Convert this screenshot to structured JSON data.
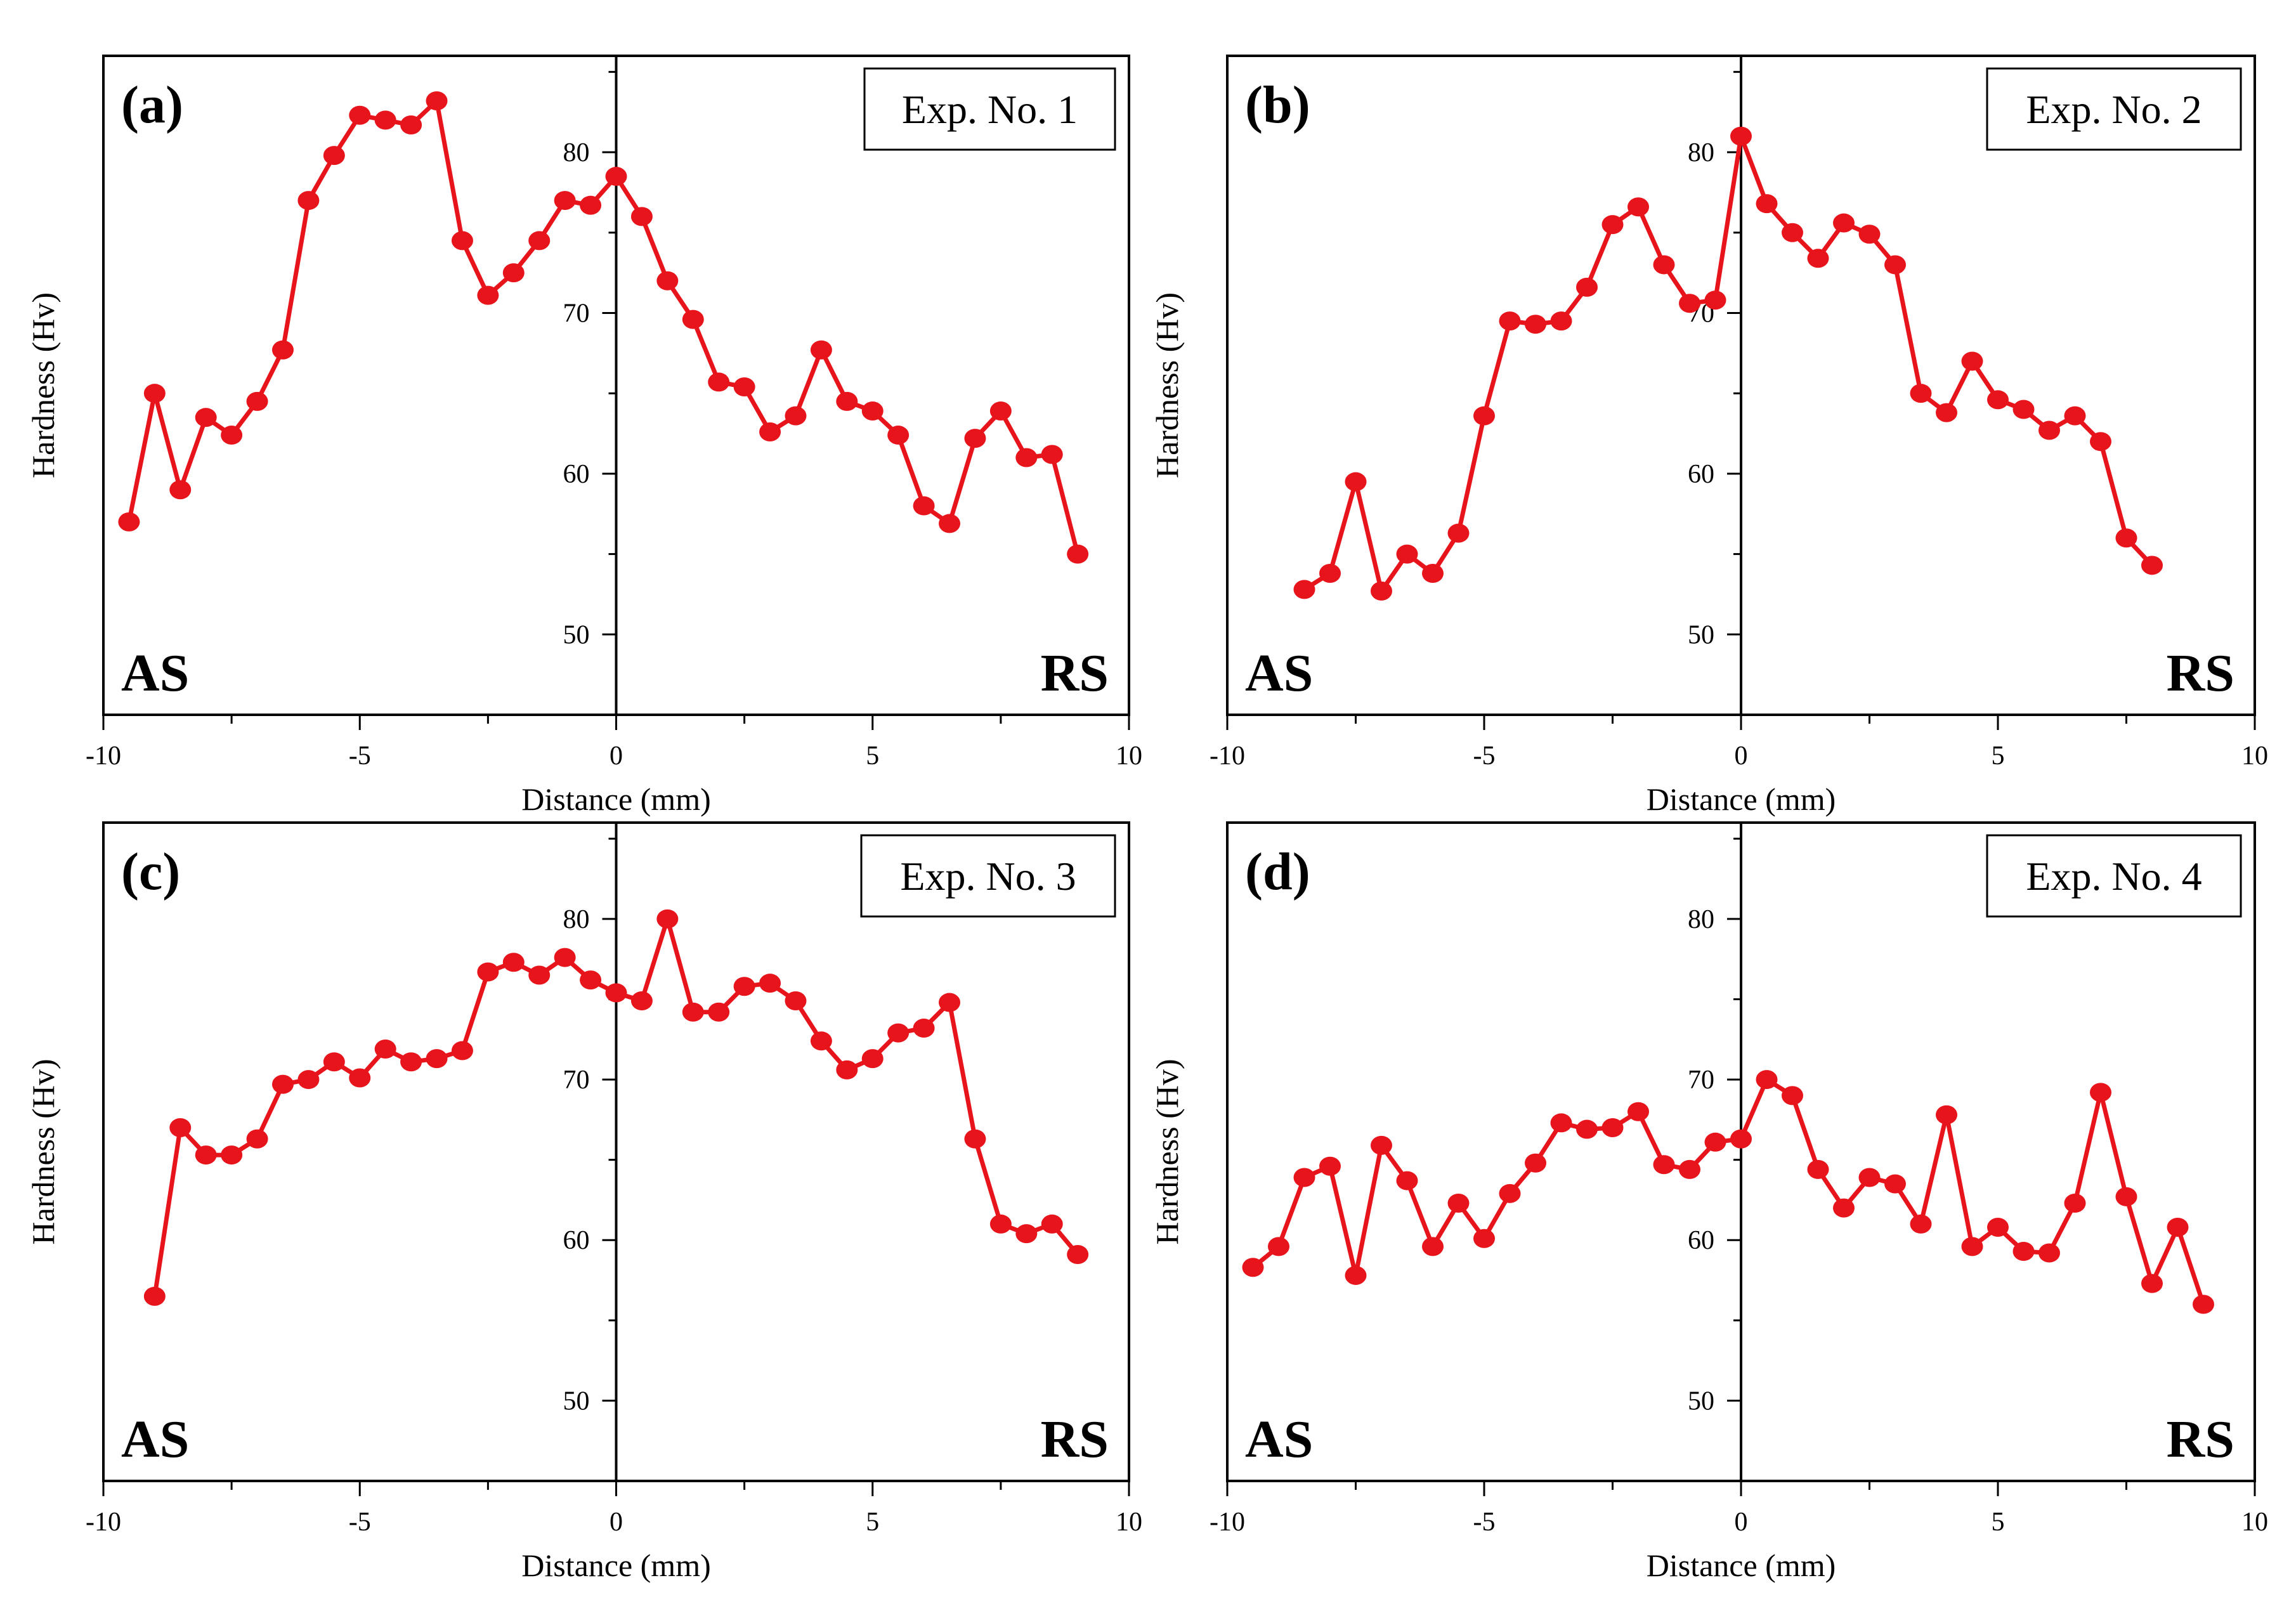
{
  "colors": {
    "series": "#e8141c",
    "axis": "#000000",
    "background": "#ffffff"
  },
  "chart_data": [
    {
      "type": "line",
      "panel_label": "(a)",
      "legend": "Exp. No. 1",
      "xlabel": "Distance (mm)",
      "ylabel": "Hardness (Hv)",
      "xlim": [
        -10,
        10
      ],
      "ylim": [
        45,
        86
      ],
      "xticks": [
        "-10",
        "-5",
        "0",
        "5",
        "10"
      ],
      "yticks": [
        "50",
        "60",
        "70",
        "80"
      ],
      "left_text": "AS",
      "right_text": "RS",
      "x": [
        -9.5,
        -9,
        -8.5,
        -8,
        -7.5,
        -7,
        -6.5,
        -6,
        -5.5,
        -5,
        -4.5,
        -4,
        -3.5,
        -3,
        -2.5,
        -2,
        -1.5,
        -1,
        -0.5,
        0,
        0.5,
        1,
        1.5,
        2,
        2.5,
        3,
        3.5,
        4,
        4.5,
        5,
        5.5,
        6,
        6.5,
        7,
        7.5,
        8,
        8.5,
        9
      ],
      "y": [
        57,
        65,
        59,
        63.5,
        62.4,
        64.5,
        67.7,
        77,
        79.8,
        82.3,
        82,
        81.7,
        83.2,
        74.5,
        71.1,
        72.5,
        74.5,
        77,
        76.7,
        78.5,
        76,
        72,
        69.6,
        65.7,
        65.4,
        62.6,
        63.6,
        67.7,
        64.5,
        63.9,
        62.4,
        58,
        56.9,
        62.2,
        63.9,
        61,
        61.2,
        55
      ]
    },
    {
      "type": "line",
      "panel_label": "(b)",
      "legend": "Exp. No. 2",
      "xlabel": "Distance (mm)",
      "ylabel": "Hardness (Hv)",
      "xlim": [
        -10,
        10
      ],
      "ylim": [
        45,
        86
      ],
      "xticks": [
        "-10",
        "-5",
        "0",
        "5",
        "10"
      ],
      "yticks": [
        "50",
        "60",
        "70",
        "80"
      ],
      "left_text": "AS",
      "right_text": "RS",
      "x": [
        -8.5,
        -8,
        -7.5,
        -7,
        -6.5,
        -6,
        -5.5,
        -5,
        -4.5,
        -4,
        -3.5,
        -3,
        -2.5,
        -2,
        -1.5,
        -1,
        -0.5,
        0,
        0.5,
        1,
        1.5,
        2,
        2.5,
        3,
        3.5,
        4,
        4.5,
        5,
        5.5,
        6,
        6.5,
        7,
        7.5,
        8
      ],
      "y": [
        52.8,
        53.8,
        59.5,
        52.7,
        55,
        53.8,
        56.3,
        63.6,
        69.5,
        69.3,
        69.5,
        71.6,
        75.5,
        76.6,
        73,
        70.6,
        70.8,
        81,
        76.8,
        75,
        73.4,
        75.6,
        74.9,
        73,
        65,
        63.8,
        67,
        64.6,
        64,
        62.7,
        63.6,
        62,
        56,
        54.3
      ]
    },
    {
      "type": "line",
      "panel_label": "(c)",
      "legend": "Exp. No. 3",
      "xlabel": "Distance (mm)",
      "ylabel": "Hardness (Hv)",
      "xlim": [
        -10,
        10
      ],
      "ylim": [
        45,
        86
      ],
      "xticks": [
        "-10",
        "-5",
        "0",
        "5",
        "10"
      ],
      "yticks": [
        "50",
        "60",
        "70",
        "80"
      ],
      "left_text": "AS",
      "right_text": "RS",
      "x": [
        -9,
        -8.5,
        -8,
        -7.5,
        -7,
        -6.5,
        -6,
        -5.5,
        -5,
        -4.5,
        -4,
        -3.5,
        -3,
        -2.5,
        -2,
        -1.5,
        -1,
        -0.5,
        0,
        0.5,
        1,
        1.5,
        2,
        2.5,
        3,
        3.5,
        4,
        4.5,
        5,
        5.5,
        6,
        6.5,
        7,
        7.5,
        8,
        8.5,
        9
      ],
      "y": [
        56.5,
        67,
        65.3,
        65.3,
        66.3,
        69.7,
        70,
        71.1,
        70.1,
        71.9,
        71.1,
        71.3,
        71.8,
        76.7,
        77.3,
        76.5,
        77.6,
        76.2,
        75.4,
        74.9,
        80,
        74.2,
        74.2,
        75.8,
        76,
        74.9,
        72.4,
        70.6,
        71.3,
        72.9,
        73.2,
        74.8,
        66.3,
        61,
        60.4,
        61,
        59.1
      ]
    },
    {
      "type": "line",
      "panel_label": "(d)",
      "legend": "Exp. No. 4",
      "xlabel": "Distance (mm)",
      "ylabel": "Hardness (Hv)",
      "xlim": [
        -10,
        10
      ],
      "ylim": [
        45,
        86
      ],
      "xticks": [
        "-10",
        "-5",
        "0",
        "5",
        "10"
      ],
      "yticks": [
        "50",
        "60",
        "70",
        "80"
      ],
      "left_text": "AS",
      "right_text": "RS",
      "x": [
        -9.5,
        -9,
        -8.5,
        -8,
        -7.5,
        -7,
        -6.5,
        -6,
        -5.5,
        -5,
        -4.5,
        -4,
        -3.5,
        -3,
        -2.5,
        -2,
        -1.5,
        -1,
        -0.5,
        0,
        0.5,
        1,
        1.5,
        2,
        2.5,
        3,
        3.5,
        4,
        4.5,
        5,
        5.5,
        6,
        6.5,
        7,
        7.5,
        8,
        8.5,
        9
      ],
      "y": [
        58.3,
        59.6,
        63.9,
        64.6,
        57.8,
        65.9,
        63.7,
        59.6,
        62.3,
        60.1,
        62.9,
        64.8,
        67.3,
        66.9,
        67,
        68,
        64.7,
        64.4,
        66.1,
        66.3,
        70,
        69,
        64.4,
        62,
        63.9,
        63.5,
        61,
        67.8,
        59.6,
        60.8,
        59.3,
        59.2,
        62.3,
        69.2,
        62.7,
        57.3,
        60.8,
        56
      ]
    }
  ]
}
